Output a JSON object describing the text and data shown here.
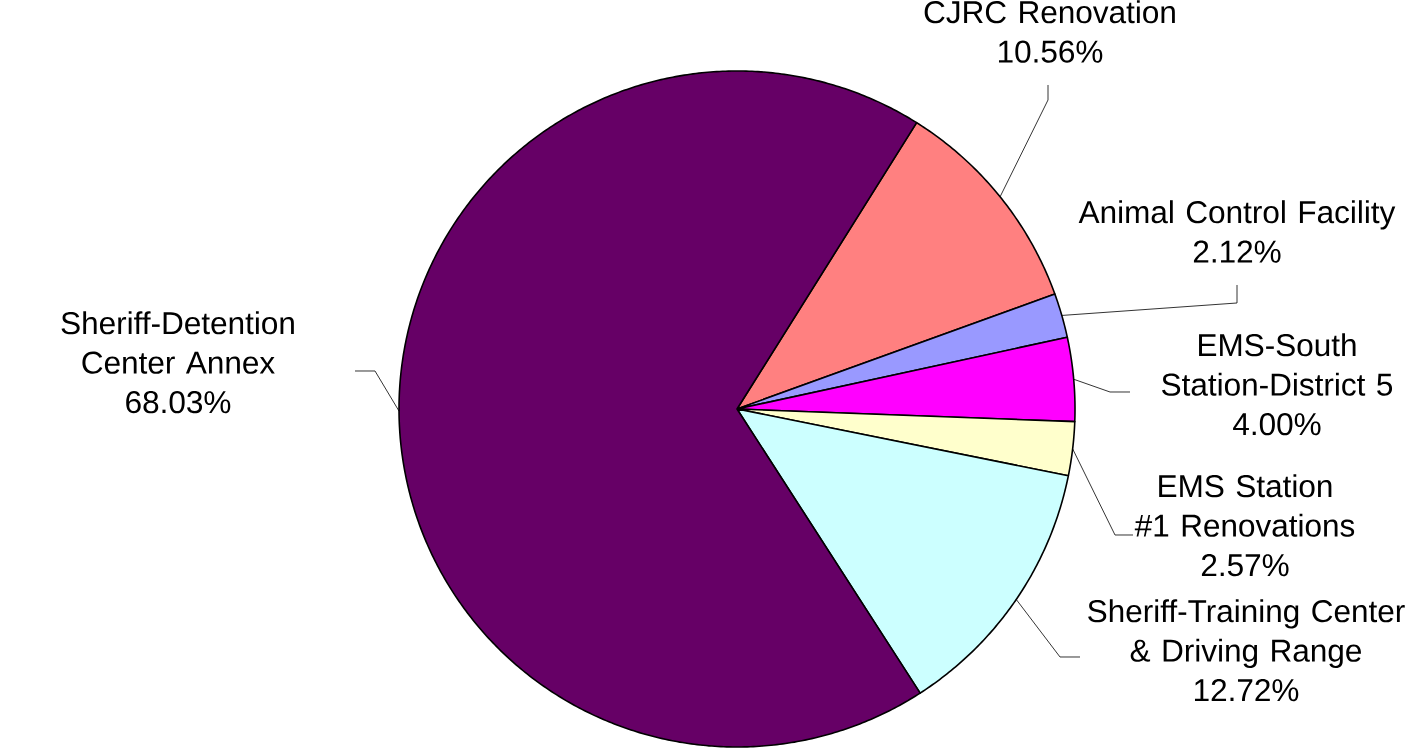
{
  "chart_data": {
    "type": "pie",
    "categories": [
      "CJRC Renovation",
      "Animal Control Facility",
      "EMS-South Station-District 5",
      "EMS Station #1 Renovations",
      "Sheriff-Training Center & Driving Range",
      "Sheriff-Detention Center Annex"
    ],
    "values": [
      10.56,
      2.12,
      4.0,
      2.57,
      12.72,
      68.03
    ],
    "colors": [
      "#ff8080",
      "#9999ff",
      "#ff00ff",
      "#ffffcc",
      "#ccffff",
      "#660066"
    ],
    "value_labels": [
      "10.56%",
      "2.12%",
      "4.00%",
      "2.57%",
      "12.72%",
      "68.03%"
    ],
    "data_labels": true
  }
}
